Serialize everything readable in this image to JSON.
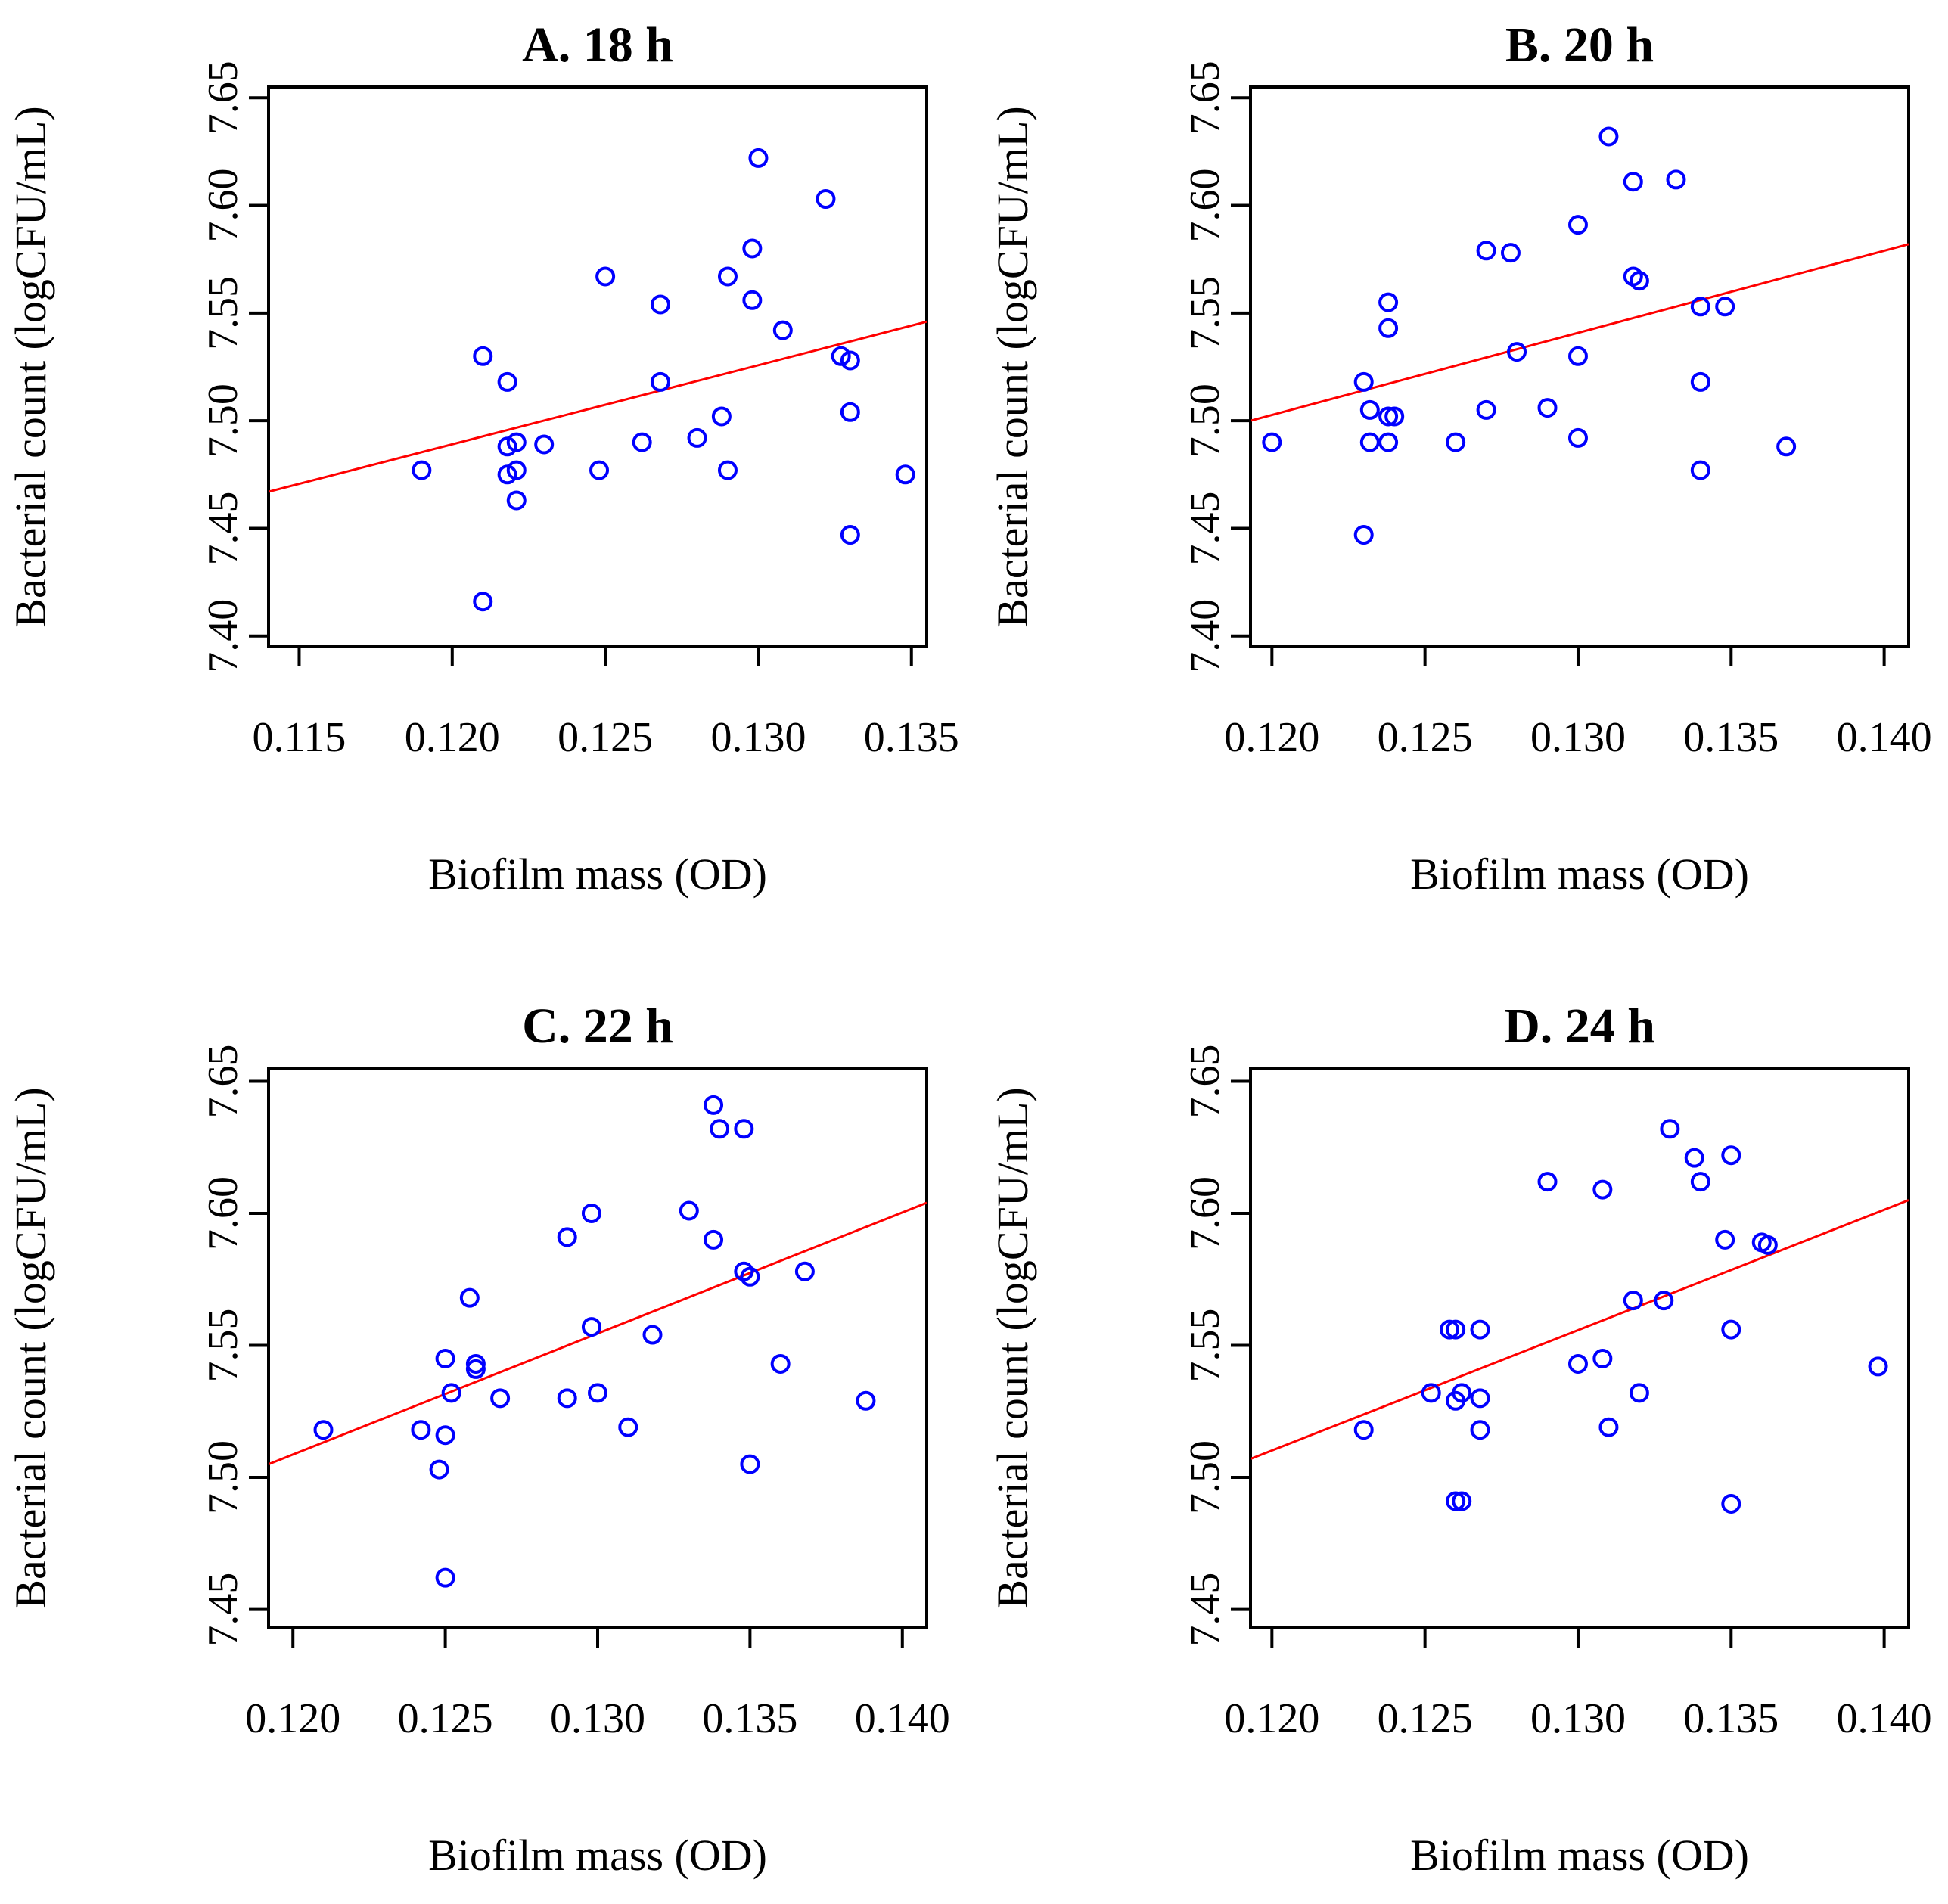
{
  "chart_data": [
    {
      "type": "scatter",
      "title": "A. 18 h",
      "xlabel": "Biofilm mass (OD)",
      "ylabel": "Bacterial count (logCFU/mL)",
      "xlim": [
        0.114,
        0.1355
      ],
      "ylim": [
        7.395,
        7.655
      ],
      "xticks": [
        "0.115",
        "0.120",
        "0.125",
        "0.130",
        "0.135"
      ],
      "yticks": [
        "7.40",
        "7.45",
        "7.50",
        "7.55",
        "7.60",
        "7.65"
      ],
      "grid": false,
      "fit_line": {
        "x": [
          0.114,
          0.1355
        ],
        "y": [
          7.467,
          7.546
        ],
        "color": "#ff0000"
      },
      "marker_color": "#0000ff",
      "points": [
        {
          "x": 0.119,
          "y": 7.477
        },
        {
          "x": 0.121,
          "y": 7.53
        },
        {
          "x": 0.121,
          "y": 7.416
        },
        {
          "x": 0.1218,
          "y": 7.518
        },
        {
          "x": 0.1218,
          "y": 7.488
        },
        {
          "x": 0.1218,
          "y": 7.475
        },
        {
          "x": 0.1221,
          "y": 7.49
        },
        {
          "x": 0.1221,
          "y": 7.477
        },
        {
          "x": 0.1221,
          "y": 7.463
        },
        {
          "x": 0.123,
          "y": 7.489
        },
        {
          "x": 0.1248,
          "y": 7.477
        },
        {
          "x": 0.125,
          "y": 7.567
        },
        {
          "x": 0.1262,
          "y": 7.49
        },
        {
          "x": 0.1268,
          "y": 7.554
        },
        {
          "x": 0.1268,
          "y": 7.518
        },
        {
          "x": 0.128,
          "y": 7.492
        },
        {
          "x": 0.1288,
          "y": 7.502
        },
        {
          "x": 0.129,
          "y": 7.567
        },
        {
          "x": 0.129,
          "y": 7.477
        },
        {
          "x": 0.1298,
          "y": 7.556
        },
        {
          "x": 0.1298,
          "y": 7.58
        },
        {
          "x": 0.13,
          "y": 7.622
        },
        {
          "x": 0.1308,
          "y": 7.542
        },
        {
          "x": 0.1322,
          "y": 7.603
        },
        {
          "x": 0.1327,
          "y": 7.53
        },
        {
          "x": 0.133,
          "y": 7.528
        },
        {
          "x": 0.133,
          "y": 7.504
        },
        {
          "x": 0.133,
          "y": 7.447
        },
        {
          "x": 0.1348,
          "y": 7.475
        }
      ]
    },
    {
      "type": "scatter",
      "title": "B. 20 h",
      "xlabel": "Biofilm mass (OD)",
      "ylabel": "Bacterial count (logCFU/mL)",
      "xlim": [
        0.1193,
        0.1408
      ],
      "ylim": [
        7.395,
        7.655
      ],
      "xticks": [
        "0.120",
        "0.125",
        "0.130",
        "0.135",
        "0.140"
      ],
      "yticks": [
        "7.40",
        "7.45",
        "7.50",
        "7.55",
        "7.60",
        "7.65"
      ],
      "grid": false,
      "fit_line": {
        "x": [
          0.1193,
          0.1408
        ],
        "y": [
          7.5,
          7.582
        ],
        "color": "#ff0000"
      },
      "marker_color": "#0000ff",
      "points": [
        {
          "x": 0.12,
          "y": 7.49
        },
        {
          "x": 0.123,
          "y": 7.518
        },
        {
          "x": 0.123,
          "y": 7.447
        },
        {
          "x": 0.1232,
          "y": 7.505
        },
        {
          "x": 0.1232,
          "y": 7.49
        },
        {
          "x": 0.1238,
          "y": 7.555
        },
        {
          "x": 0.1238,
          "y": 7.543
        },
        {
          "x": 0.1238,
          "y": 7.502
        },
        {
          "x": 0.124,
          "y": 7.502
        },
        {
          "x": 0.1238,
          "y": 7.49
        },
        {
          "x": 0.126,
          "y": 7.49
        },
        {
          "x": 0.127,
          "y": 7.579
        },
        {
          "x": 0.127,
          "y": 7.505
        },
        {
          "x": 0.1278,
          "y": 7.578
        },
        {
          "x": 0.128,
          "y": 7.532
        },
        {
          "x": 0.129,
          "y": 7.506
        },
        {
          "x": 0.13,
          "y": 7.591
        },
        {
          "x": 0.13,
          "y": 7.53
        },
        {
          "x": 0.13,
          "y": 7.492
        },
        {
          "x": 0.131,
          "y": 7.632
        },
        {
          "x": 0.1318,
          "y": 7.611
        },
        {
          "x": 0.1318,
          "y": 7.567
        },
        {
          "x": 0.132,
          "y": 7.565
        },
        {
          "x": 0.1332,
          "y": 7.612
        },
        {
          "x": 0.134,
          "y": 7.553
        },
        {
          "x": 0.134,
          "y": 7.518
        },
        {
          "x": 0.134,
          "y": 7.477
        },
        {
          "x": 0.1348,
          "y": 7.553
        },
        {
          "x": 0.1368,
          "y": 7.488
        }
      ]
    },
    {
      "type": "scatter",
      "title": "C. 22 h",
      "xlabel": "Biofilm mass (OD)",
      "ylabel": "Bacterial count (logCFU/mL)",
      "xlim": [
        0.1192,
        0.1408
      ],
      "ylim": [
        7.443,
        7.655
      ],
      "xticks": [
        "0.120",
        "0.125",
        "0.130",
        "0.135",
        "0.140"
      ],
      "yticks": [
        "7.45",
        "7.50",
        "7.55",
        "7.60",
        "7.65"
      ],
      "grid": false,
      "fit_line": {
        "x": [
          0.1192,
          0.1408
        ],
        "y": [
          7.505,
          7.604
        ],
        "color": "#ff0000"
      },
      "marker_color": "#0000ff",
      "points": [
        {
          "x": 0.121,
          "y": 7.518
        },
        {
          "x": 0.1242,
          "y": 7.518
        },
        {
          "x": 0.1248,
          "y": 7.503
        },
        {
          "x": 0.125,
          "y": 7.545
        },
        {
          "x": 0.125,
          "y": 7.516
        },
        {
          "x": 0.125,
          "y": 7.462
        },
        {
          "x": 0.1252,
          "y": 7.532
        },
        {
          "x": 0.1258,
          "y": 7.568
        },
        {
          "x": 0.126,
          "y": 7.543
        },
        {
          "x": 0.126,
          "y": 7.541
        },
        {
          "x": 0.1268,
          "y": 7.53
        },
        {
          "x": 0.129,
          "y": 7.591
        },
        {
          "x": 0.129,
          "y": 7.53
        },
        {
          "x": 0.1298,
          "y": 7.6
        },
        {
          "x": 0.1298,
          "y": 7.557
        },
        {
          "x": 0.13,
          "y": 7.532
        },
        {
          "x": 0.131,
          "y": 7.519
        },
        {
          "x": 0.1318,
          "y": 7.554
        },
        {
          "x": 0.133,
          "y": 7.601
        },
        {
          "x": 0.1338,
          "y": 7.59
        },
        {
          "x": 0.1338,
          "y": 7.641
        },
        {
          "x": 0.134,
          "y": 7.632
        },
        {
          "x": 0.1348,
          "y": 7.632
        },
        {
          "x": 0.1348,
          "y": 7.578
        },
        {
          "x": 0.135,
          "y": 7.576
        },
        {
          "x": 0.135,
          "y": 7.505
        },
        {
          "x": 0.136,
          "y": 7.543
        },
        {
          "x": 0.1368,
          "y": 7.578
        },
        {
          "x": 0.1388,
          "y": 7.529
        }
      ]
    },
    {
      "type": "scatter",
      "title": "D. 24 h",
      "xlabel": "Biofilm mass (OD)",
      "ylabel": "Bacterial count (logCFU/mL)",
      "xlim": [
        0.1193,
        0.1408
      ],
      "ylim": [
        7.443,
        7.655
      ],
      "xticks": [
        "0.120",
        "0.125",
        "0.130",
        "0.135",
        "0.140"
      ],
      "yticks": [
        "7.45",
        "7.50",
        "7.55",
        "7.60",
        "7.65"
      ],
      "grid": false,
      "fit_line": {
        "x": [
          0.1193,
          0.1408
        ],
        "y": [
          7.507,
          7.605
        ],
        "color": "#ff0000"
      },
      "marker_color": "#0000ff",
      "points": [
        {
          "x": 0.123,
          "y": 7.518
        },
        {
          "x": 0.1252,
          "y": 7.532
        },
        {
          "x": 0.1258,
          "y": 7.556
        },
        {
          "x": 0.126,
          "y": 7.556
        },
        {
          "x": 0.126,
          "y": 7.529
        },
        {
          "x": 0.1262,
          "y": 7.532
        },
        {
          "x": 0.126,
          "y": 7.491
        },
        {
          "x": 0.1262,
          "y": 7.491
        },
        {
          "x": 0.1268,
          "y": 7.556
        },
        {
          "x": 0.1268,
          "y": 7.53
        },
        {
          "x": 0.1268,
          "y": 7.518
        },
        {
          "x": 0.129,
          "y": 7.612
        },
        {
          "x": 0.13,
          "y": 7.543
        },
        {
          "x": 0.1308,
          "y": 7.609
        },
        {
          "x": 0.1308,
          "y": 7.545
        },
        {
          "x": 0.131,
          "y": 7.519
        },
        {
          "x": 0.1318,
          "y": 7.567
        },
        {
          "x": 0.132,
          "y": 7.532
        },
        {
          "x": 0.1328,
          "y": 7.567
        },
        {
          "x": 0.133,
          "y": 7.632
        },
        {
          "x": 0.1338,
          "y": 7.621
        },
        {
          "x": 0.134,
          "y": 7.612
        },
        {
          "x": 0.1348,
          "y": 7.59
        },
        {
          "x": 0.135,
          "y": 7.622
        },
        {
          "x": 0.135,
          "y": 7.556
        },
        {
          "x": 0.135,
          "y": 7.49
        },
        {
          "x": 0.136,
          "y": 7.589
        },
        {
          "x": 0.1362,
          "y": 7.588
        },
        {
          "x": 0.1398,
          "y": 7.542
        }
      ]
    }
  ]
}
